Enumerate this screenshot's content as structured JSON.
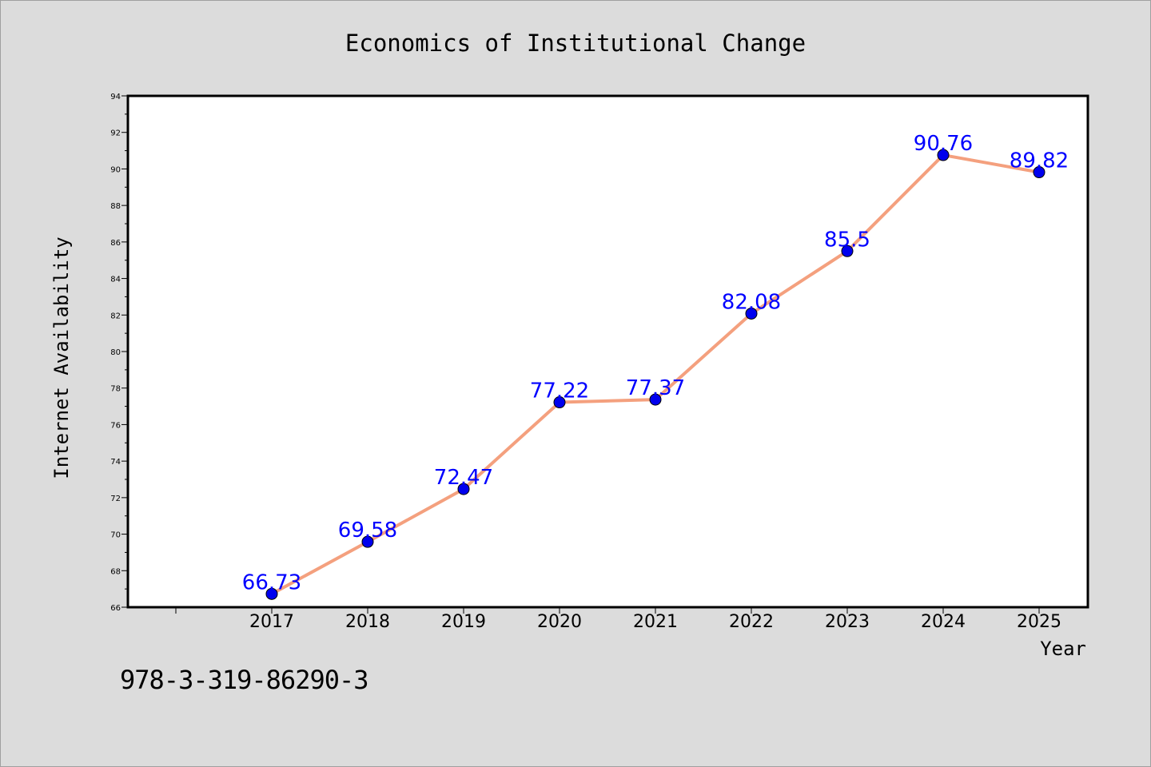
{
  "chart_data": {
    "type": "line",
    "title": "Economics of Institutional Change",
    "xlabel": "Year",
    "ylabel": "Internet Availability",
    "categories": [
      "2017",
      "2018",
      "2019",
      "2020",
      "2021",
      "2022",
      "2023",
      "2024",
      "2025"
    ],
    "series": [
      {
        "values": [
          66.73,
          69.58,
          72.47,
          77.22,
          77.37,
          82.08,
          85.5,
          90.76,
          89.82
        ],
        "labels": [
          "66.73",
          "69.58",
          "72.47",
          "77.22",
          "77.37",
          "82.08",
          "85.5",
          "90.76",
          "89.82"
        ]
      }
    ],
    "ylim": [
      66,
      94
    ],
    "yticks": [
      "66",
      "68",
      "70",
      "72",
      "74",
      "76",
      "78",
      "80",
      "82",
      "84",
      "86",
      "88",
      "90",
      "92",
      "94"
    ],
    "grid": false,
    "line_color": "#f4a07e",
    "marker_color": "#0000ee",
    "label_color": "#0000ff",
    "background_color": "#dcdcdc"
  },
  "footer": {
    "isbn": "978-3-319-86290-3"
  }
}
